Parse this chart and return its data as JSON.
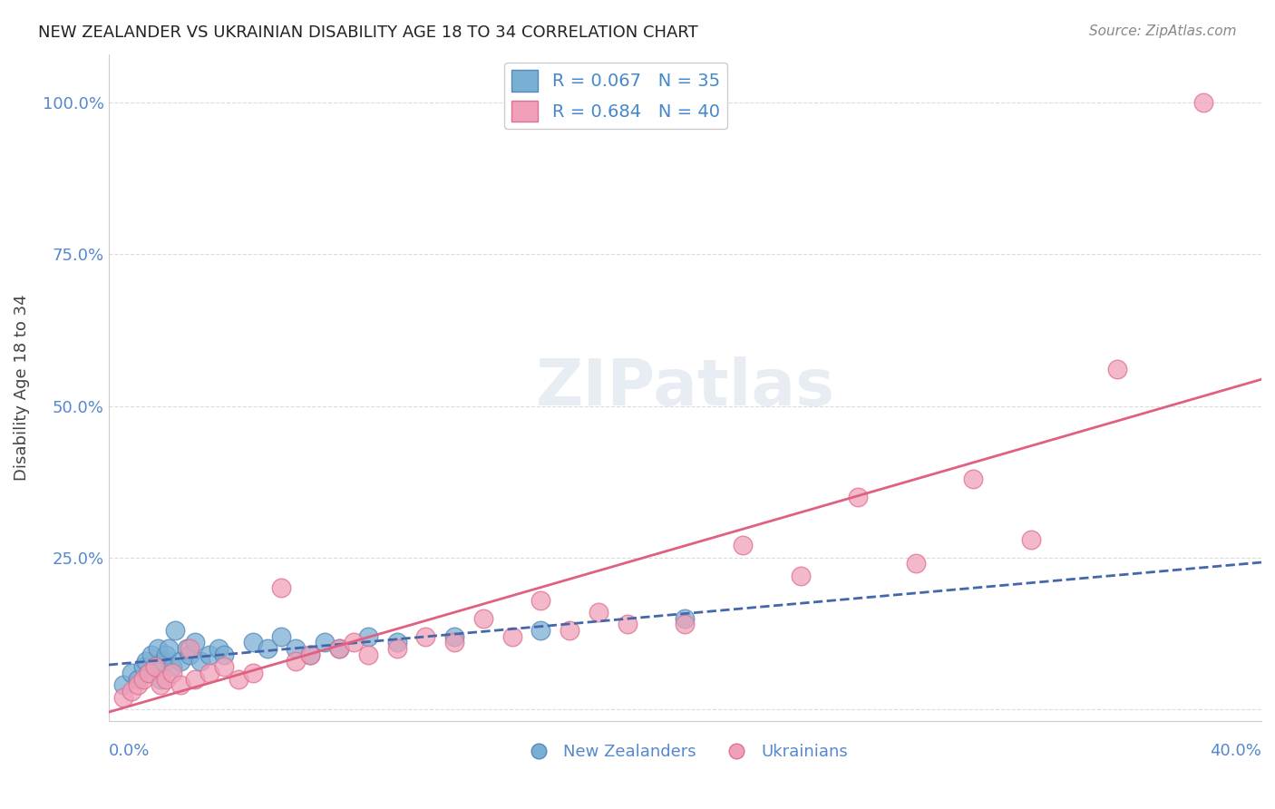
{
  "title": "NEW ZEALANDER VS UKRAINIAN DISABILITY AGE 18 TO 34 CORRELATION CHART",
  "source": "Source: ZipAtlas.com",
  "ylabel": "Disability Age 18 to 34",
  "xlim": [
    0.0,
    0.4
  ],
  "ylim": [
    -0.02,
    1.08
  ],
  "nz_color": "#7aafd4",
  "nz_edge": "#5588bb",
  "uk_color": "#f0a0b8",
  "uk_edge": "#e07090",
  "nz_line_color": "#4466aa",
  "uk_line_color": "#e06080",
  "background_color": "#ffffff",
  "grid_color": "#cccccc",
  "nz_x": [
    0.005,
    0.008,
    0.01,
    0.012,
    0.013,
    0.014,
    0.015,
    0.016,
    0.017,
    0.018,
    0.019,
    0.02,
    0.021,
    0.022,
    0.023,
    0.025,
    0.027,
    0.028,
    0.03,
    0.032,
    0.035,
    0.038,
    0.04,
    0.05,
    0.055,
    0.06,
    0.065,
    0.07,
    0.075,
    0.08,
    0.09,
    0.1,
    0.12,
    0.15,
    0.2
  ],
  "nz_y": [
    0.04,
    0.06,
    0.05,
    0.07,
    0.08,
    0.06,
    0.09,
    0.07,
    0.1,
    0.05,
    0.08,
    0.09,
    0.1,
    0.07,
    0.13,
    0.08,
    0.1,
    0.09,
    0.11,
    0.08,
    0.09,
    0.1,
    0.09,
    0.11,
    0.1,
    0.12,
    0.1,
    0.09,
    0.11,
    0.1,
    0.12,
    0.11,
    0.12,
    0.13,
    0.15
  ],
  "uk_x": [
    0.005,
    0.008,
    0.01,
    0.012,
    0.014,
    0.016,
    0.018,
    0.02,
    0.022,
    0.025,
    0.028,
    0.03,
    0.035,
    0.04,
    0.045,
    0.05,
    0.06,
    0.065,
    0.07,
    0.08,
    0.085,
    0.09,
    0.1,
    0.11,
    0.12,
    0.13,
    0.14,
    0.15,
    0.16,
    0.17,
    0.18,
    0.2,
    0.22,
    0.24,
    0.26,
    0.28,
    0.3,
    0.32,
    0.35,
    0.38
  ],
  "uk_y": [
    0.02,
    0.03,
    0.04,
    0.05,
    0.06,
    0.07,
    0.04,
    0.05,
    0.06,
    0.04,
    0.1,
    0.05,
    0.06,
    0.07,
    0.05,
    0.06,
    0.2,
    0.08,
    0.09,
    0.1,
    0.11,
    0.09,
    0.1,
    0.12,
    0.11,
    0.15,
    0.12,
    0.18,
    0.13,
    0.16,
    0.14,
    0.14,
    0.27,
    0.22,
    0.35,
    0.24,
    0.38,
    0.28,
    0.56,
    1.0
  ]
}
